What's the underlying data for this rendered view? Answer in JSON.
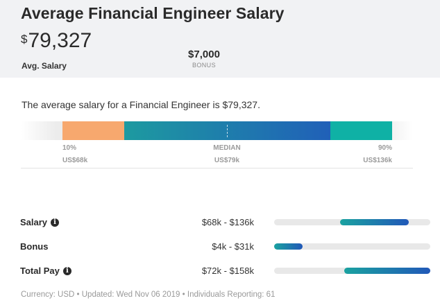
{
  "header": {
    "title": "Average Financial Engineer Salary",
    "currency_symbol": "$",
    "avg_salary": "79,327",
    "avg_salary_label": "Avg. Salary",
    "bonus_value": "$7,000",
    "bonus_label": "BONUS"
  },
  "summary": "The average salary for a Financial Engineer is $79,327.",
  "range": {
    "p10_label": "10%",
    "p10_value": "US$68k",
    "median_label": "MEDIAN",
    "median_value": "US$79k",
    "p90_label": "90%",
    "p90_value": "US$136k",
    "colors": {
      "low": "#f7a86e",
      "mid_start": "#1d9aa0",
      "mid_end": "#2060b8",
      "high": "#0fb1a5"
    }
  },
  "pay_rows": [
    {
      "label": "Salary",
      "has_info": true,
      "range": "$68k - $136k",
      "fill_start": 0.42,
      "fill_end": 0.86
    },
    {
      "label": "Bonus",
      "has_info": false,
      "range": "$4k - $31k",
      "fill_start": 0.0,
      "fill_end": 0.18
    },
    {
      "label": "Total Pay",
      "has_info": true,
      "range": "$72k - $158k",
      "fill_start": 0.45,
      "fill_end": 1.0
    }
  ],
  "info_icon": "info-circle-icon",
  "footer": "Currency: USD • Updated: Wed Nov 06 2019 • Individuals Reporting: 61"
}
